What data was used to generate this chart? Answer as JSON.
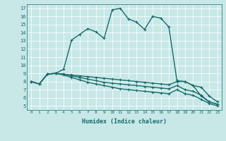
{
  "xlabel": "Humidex (Indice chaleur)",
  "bg_color": "#c8e8e8",
  "grid_color": "#b0d0d0",
  "line_color": "#1a6b6b",
  "xlim": [
    -0.5,
    23.5
  ],
  "ylim": [
    4.5,
    17.5
  ],
  "xticks": [
    0,
    1,
    2,
    3,
    4,
    5,
    6,
    7,
    8,
    9,
    10,
    11,
    12,
    13,
    14,
    15,
    16,
    17,
    18,
    19,
    20,
    21,
    22,
    23
  ],
  "yticks": [
    5,
    6,
    7,
    8,
    9,
    10,
    11,
    12,
    13,
    14,
    15,
    16,
    17
  ],
  "series": [
    [
      8.0,
      7.7,
      8.9,
      9.0,
      9.5,
      13.1,
      13.8,
      14.5,
      14.1,
      13.3,
      16.8,
      17.0,
      15.7,
      15.3,
      14.4,
      16.0,
      15.8,
      14.7,
      8.1,
      8.0,
      7.5,
      6.2,
      5.5,
      5.2
    ],
    [
      8.0,
      7.7,
      8.9,
      9.0,
      8.9,
      8.8,
      8.7,
      8.6,
      8.5,
      8.4,
      8.3,
      8.2,
      8.1,
      8.0,
      7.9,
      7.8,
      7.7,
      7.6,
      8.0,
      8.0,
      7.5,
      7.3,
      6.2,
      5.5
    ],
    [
      8.0,
      7.7,
      8.9,
      9.0,
      8.9,
      8.7,
      8.5,
      8.3,
      8.1,
      7.9,
      7.8,
      7.7,
      7.6,
      7.5,
      7.4,
      7.3,
      7.2,
      7.1,
      7.5,
      7.0,
      6.8,
      6.3,
      5.5,
      5.2
    ],
    [
      8.0,
      7.7,
      8.9,
      9.0,
      8.8,
      8.5,
      8.2,
      7.9,
      7.7,
      7.5,
      7.3,
      7.1,
      7.0,
      6.9,
      6.8,
      6.7,
      6.6,
      6.5,
      7.0,
      6.5,
      6.3,
      5.8,
      5.3,
      5.0
    ]
  ],
  "marker": "+",
  "markersize": 3,
  "linewidth": 1.0
}
